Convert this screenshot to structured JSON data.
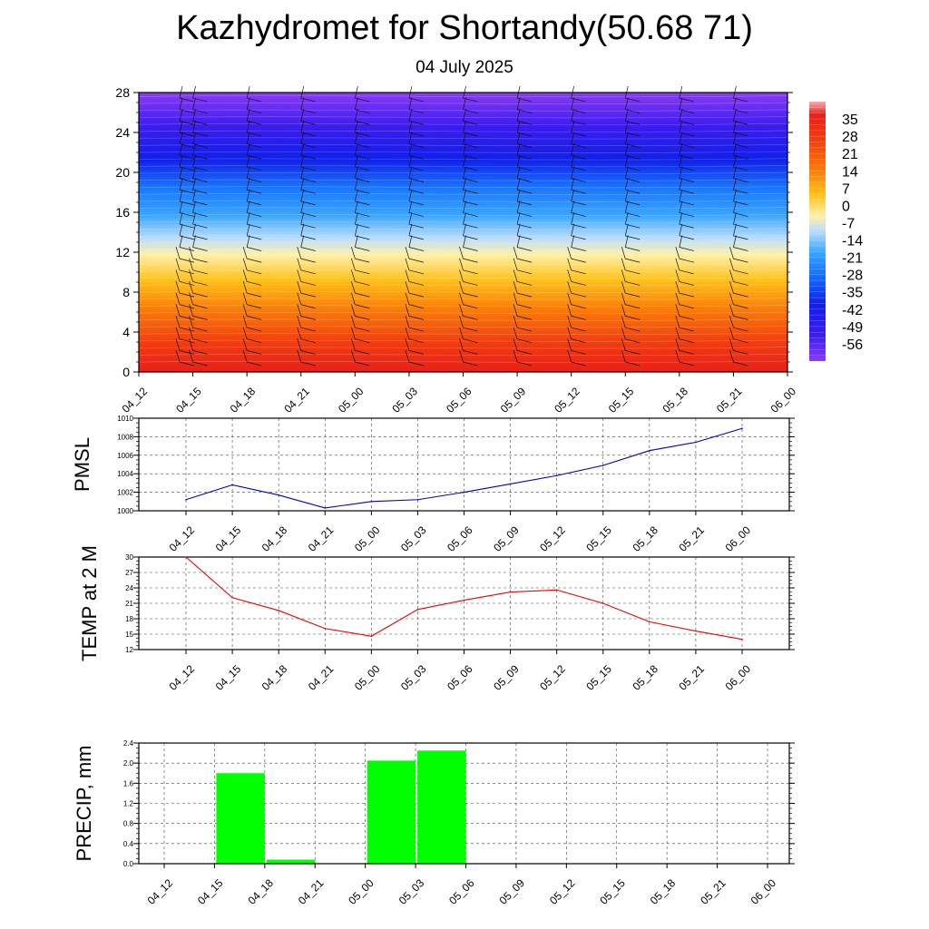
{
  "header": {
    "title": "Kazhydromet for Shortandy(50.68 71)",
    "subtitle": "04 July 2025"
  },
  "chart_data": [
    {
      "type": "heatmap",
      "description_of_fill": "temperature cross-section with wind barbs",
      "xlabel": "",
      "ylabel": "",
      "x_ticks": [
        "04_12",
        "04_15",
        "04_18",
        "04_21",
        "05_00",
        "05_03",
        "05_06",
        "05_09",
        "05_12",
        "05_15",
        "05_18",
        "05_21",
        "06_00"
      ],
      "y_ticks": [
        0,
        4,
        8,
        12,
        16,
        20,
        24,
        28
      ],
      "ylim": [
        0,
        28
      ],
      "colorbar_labels": [
        "35",
        "28",
        "21",
        "14",
        "7",
        "0",
        "-7",
        "-14",
        "-21",
        "-28",
        "-35",
        "-42",
        "-49",
        "-56"
      ],
      "colorbar_range": [
        -63,
        42
      ]
    },
    {
      "type": "line",
      "ylabel": "PMSL",
      "x": [
        "04_12",
        "04_15",
        "04_18",
        "04_21",
        "05_00",
        "05_03",
        "05_06",
        "05_09",
        "05_12",
        "05_15",
        "05_18",
        "05_21",
        "06_00"
      ],
      "series": [
        {
          "values": [
            1001.2,
            1002.8,
            1001.7,
            1000.3,
            1001.0,
            1001.2,
            1002.0,
            1002.9,
            1003.8,
            1004.9,
            1006.5,
            1007.4,
            1008.9
          ],
          "color": "#0000cc"
        }
      ],
      "y_ticks": [
        1000,
        1002,
        1004,
        1006,
        1008,
        1010
      ],
      "ylim": [
        1000,
        1010
      ],
      "grid": true
    },
    {
      "type": "line",
      "ylabel": "TEMP at 2 M",
      "x": [
        "04_12",
        "04_15",
        "04_18",
        "04_21",
        "05_00",
        "05_03",
        "05_06",
        "05_09",
        "05_12",
        "05_15",
        "05_18",
        "05_21",
        "06_00"
      ],
      "series": [
        {
          "values": [
            30.0,
            22.1,
            19.6,
            16.1,
            14.6,
            19.8,
            21.6,
            23.2,
            23.6,
            21.0,
            17.4,
            15.6,
            14.0
          ],
          "color": "#ee0000"
        }
      ],
      "y_ticks": [
        12,
        15,
        18,
        21,
        24,
        27,
        30
      ],
      "ylim": [
        12,
        30
      ],
      "grid": true
    },
    {
      "type": "bar",
      "ylabel": "PRECIP, mm",
      "categories": [
        "04_12",
        "04_15",
        "04_18",
        "04_21",
        "05_00",
        "05_03",
        "05_06",
        "05_09",
        "05_12",
        "05_15",
        "05_18",
        "05_21",
        "06_00"
      ],
      "values": [
        0,
        0,
        1.8,
        0.08,
        0,
        2.05,
        2.25,
        0,
        0,
        0,
        0,
        0,
        0
      ],
      "y_ticks": [
        "0.0",
        "0.4",
        "0.8",
        "1.2",
        "1.6",
        "2.0",
        "2.4"
      ],
      "ylim": [
        0,
        2.4
      ],
      "bar_color": "#00ff00",
      "grid": true
    }
  ]
}
